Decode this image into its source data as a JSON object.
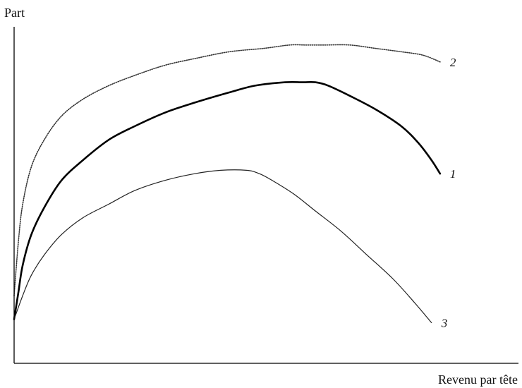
{
  "chart_data": {
    "type": "line",
    "title": "",
    "xlabel": "Revenu par tête",
    "ylabel": "Part",
    "xlim": [
      0,
      100
    ],
    "ylim": [
      0,
      100
    ],
    "grid": false,
    "ticks": false,
    "series": [
      {
        "name": "1",
        "style": "solid-thick",
        "color": "#000000",
        "x": [
          0,
          1,
          2,
          4,
          7,
          11,
          16,
          22,
          28,
          35,
          42,
          50,
          56,
          63,
          67,
          70,
          73,
          78,
          84,
          90,
          94,
          97,
          99
        ],
        "y": [
          13,
          21,
          29,
          38,
          46,
          54,
          60,
          66,
          70,
          74,
          77,
          80,
          82,
          83,
          83,
          83,
          82,
          79,
          75,
          70,
          65,
          60,
          56
        ]
      },
      {
        "name": "2",
        "style": "dotted",
        "color": "#333333",
        "x": [
          0,
          1,
          2,
          4,
          7,
          11,
          16,
          22,
          28,
          35,
          42,
          50,
          58,
          64,
          68,
          72,
          78,
          84,
          90,
          95,
          99
        ],
        "y": [
          20,
          36,
          47,
          58,
          66,
          73,
          78,
          82,
          85,
          88,
          90,
          92,
          93,
          94,
          94,
          94,
          94,
          93,
          92,
          91,
          89
        ]
      },
      {
        "name": "3",
        "style": "solid-thin",
        "color": "#222222",
        "x": [
          0,
          2,
          4,
          7,
          11,
          16,
          22,
          28,
          35,
          42,
          48,
          54,
          57,
          60,
          65,
          70,
          76,
          82,
          88,
          93,
          97
        ],
        "y": [
          13,
          20,
          26,
          32,
          38,
          43,
          47,
          51,
          54,
          56,
          57,
          57,
          56,
          54,
          50,
          45,
          39,
          32,
          25,
          18,
          12
        ]
      }
    ]
  }
}
